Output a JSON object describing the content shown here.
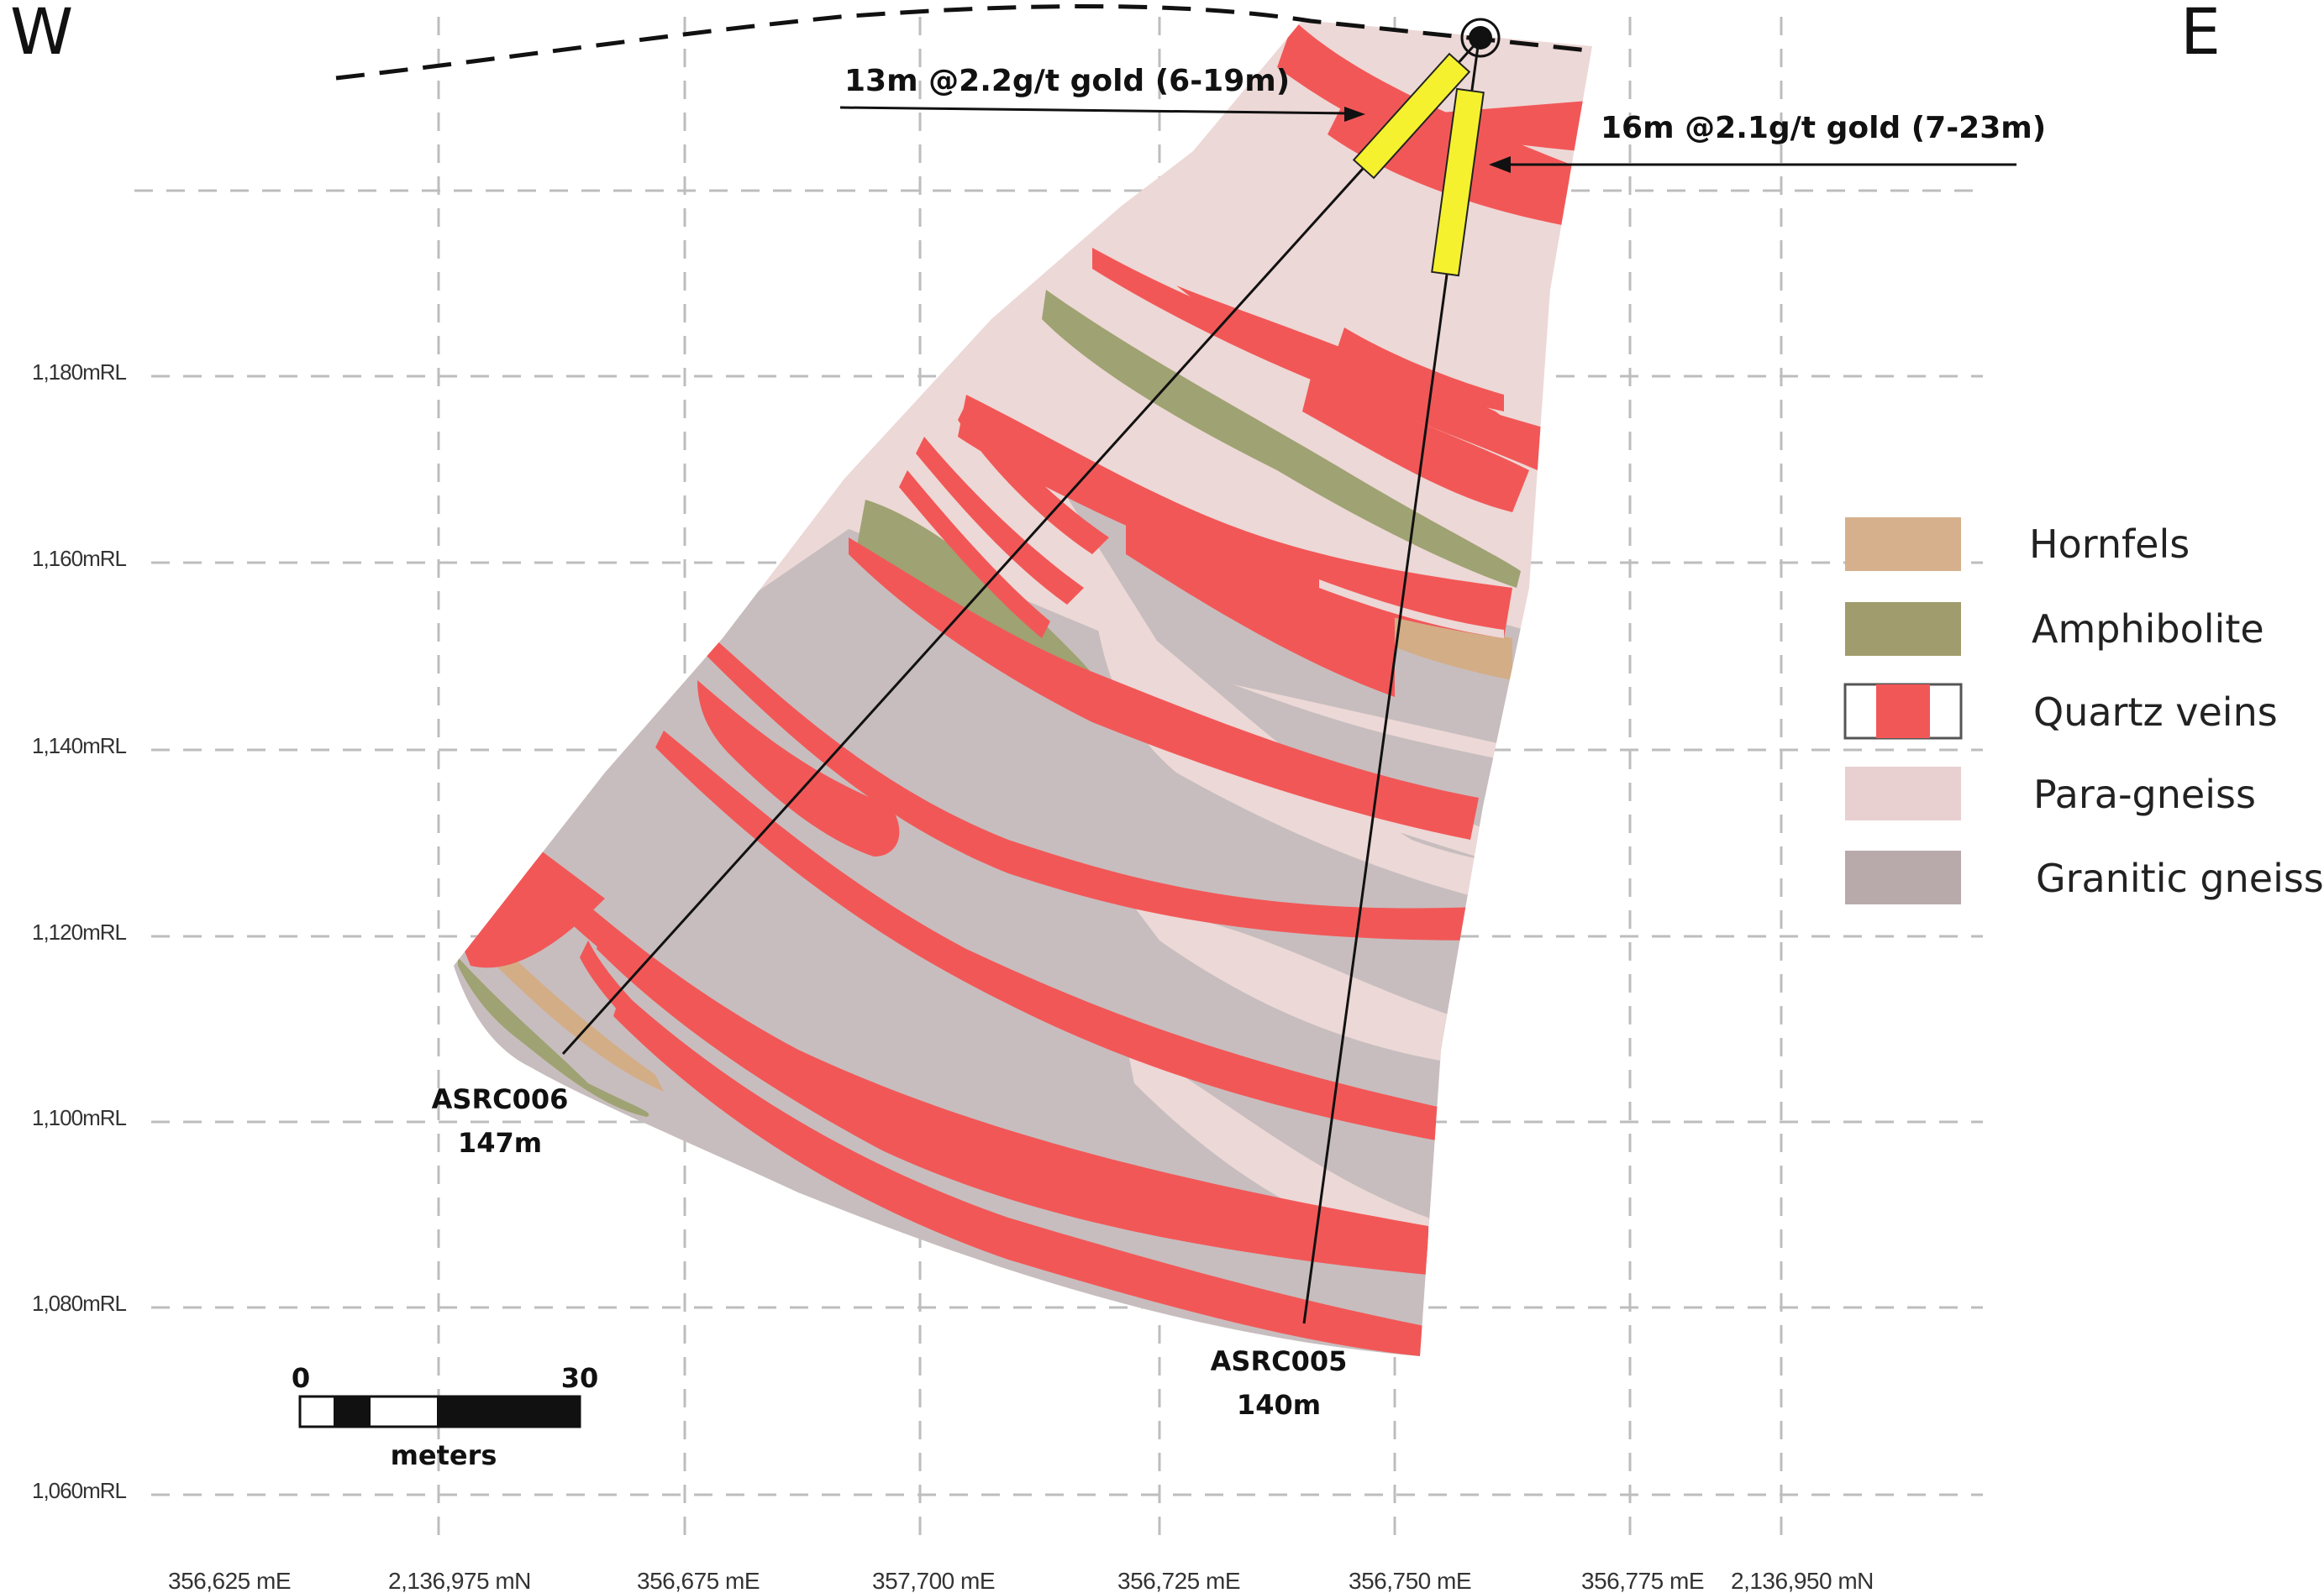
{
  "compass": {
    "west": "W",
    "east": "E"
  },
  "rl_labels": [
    "1,180mRL",
    "1,160mRL",
    "1,140mRL",
    "1,120mRL",
    "1,100mRL",
    "1,080mRL",
    "1,060mRL"
  ],
  "easting_labels": [
    "356,625 mE",
    "2,136,975 mN",
    "356,675 mE",
    "357,700 mE",
    "356,725 mE",
    "356,750 mE",
    "356,775 mE",
    "2,136,950 mN"
  ],
  "drillholes": [
    {
      "id": "ASRC006",
      "depth": "147m"
    },
    {
      "id": "ASRC005",
      "depth": "140m"
    }
  ],
  "intercepts": [
    {
      "text": "13m @2.2g/t gold (6-19m)",
      "hole": "ASRC006"
    },
    {
      "text": "16m @2.1g/t gold (7-23m)",
      "hole": "ASRC005"
    }
  ],
  "legend": [
    {
      "label": "Hornfels",
      "color": "#d6b08d"
    },
    {
      "label": "Amphibolite",
      "color": "#a19c6d"
    },
    {
      "label": "Quartz veins",
      "color": "#f25757"
    },
    {
      "label": "Para-gneiss",
      "color": "#e8d0d0"
    },
    {
      "label": "Granitic gneiss",
      "color": "#b8a9ab"
    }
  ],
  "colors": {
    "para_gneiss": "#ecd8d6",
    "granitic_gneiss": "#c7bdbe",
    "quartz": "#f25757",
    "amphibolite": "#9fa272",
    "hornfels": "#d3ad86",
    "intercept": "#f5f12e"
  },
  "scale": {
    "start": "0",
    "end": "30",
    "unit": "meters"
  }
}
